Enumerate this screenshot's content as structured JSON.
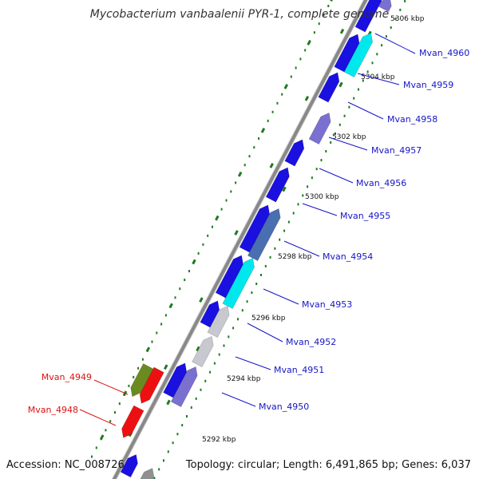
{
  "title": "Mycobacterium vanbaalenii PYR-1, complete genome",
  "accession": "Accession: NC_008726",
  "topology": "Topology: circular; Length: 6,491,865 bp; Genes: 6,037",
  "colors": {
    "blue": "#1a10e0",
    "navy": "#0a0a70",
    "cyan": "#00e8ee",
    "slate": "#7a70d0",
    "steel": "#4a6fb0",
    "lightgray": "#c8c8d0",
    "gray": "#909090",
    "red": "#ee1010",
    "olive": "#6b8a20",
    "scale_green": "#1f7a1f",
    "backbone": "#888888",
    "label_blue": "#1515c8",
    "label_red": "#dd1111"
  },
  "scale_labels": [
    {
      "text": "5306 kbp"
    },
    {
      "text": "5304 kbp"
    },
    {
      "text": "5302 kbp"
    },
    {
      "text": "5300 kbp"
    },
    {
      "text": "5298 kbp"
    },
    {
      "text": "5296 kbp"
    },
    {
      "text": "5294 kbp"
    },
    {
      "text": "5292 kbp"
    }
  ],
  "gene_labels": [
    {
      "text": "Mvan_4960",
      "color": "label_blue"
    },
    {
      "text": "Mvan_4959",
      "color": "label_blue"
    },
    {
      "text": "Mvan_4958",
      "color": "label_blue"
    },
    {
      "text": "Mvan_4957",
      "color": "label_blue"
    },
    {
      "text": "Mvan_4956",
      "color": "label_blue"
    },
    {
      "text": "Mvan_4955",
      "color": "label_blue"
    },
    {
      "text": "Mvan_4954",
      "color": "label_blue"
    },
    {
      "text": "Mvan_4953",
      "color": "label_blue"
    },
    {
      "text": "Mvan_4952",
      "color": "label_blue"
    },
    {
      "text": "Mvan_4951",
      "color": "label_blue"
    },
    {
      "text": "Mvan_4950",
      "color": "label_blue"
    },
    {
      "text": "Mvan_4949",
      "color": "label_red"
    },
    {
      "text": "Mvan_4948",
      "color": "label_red"
    }
  ]
}
